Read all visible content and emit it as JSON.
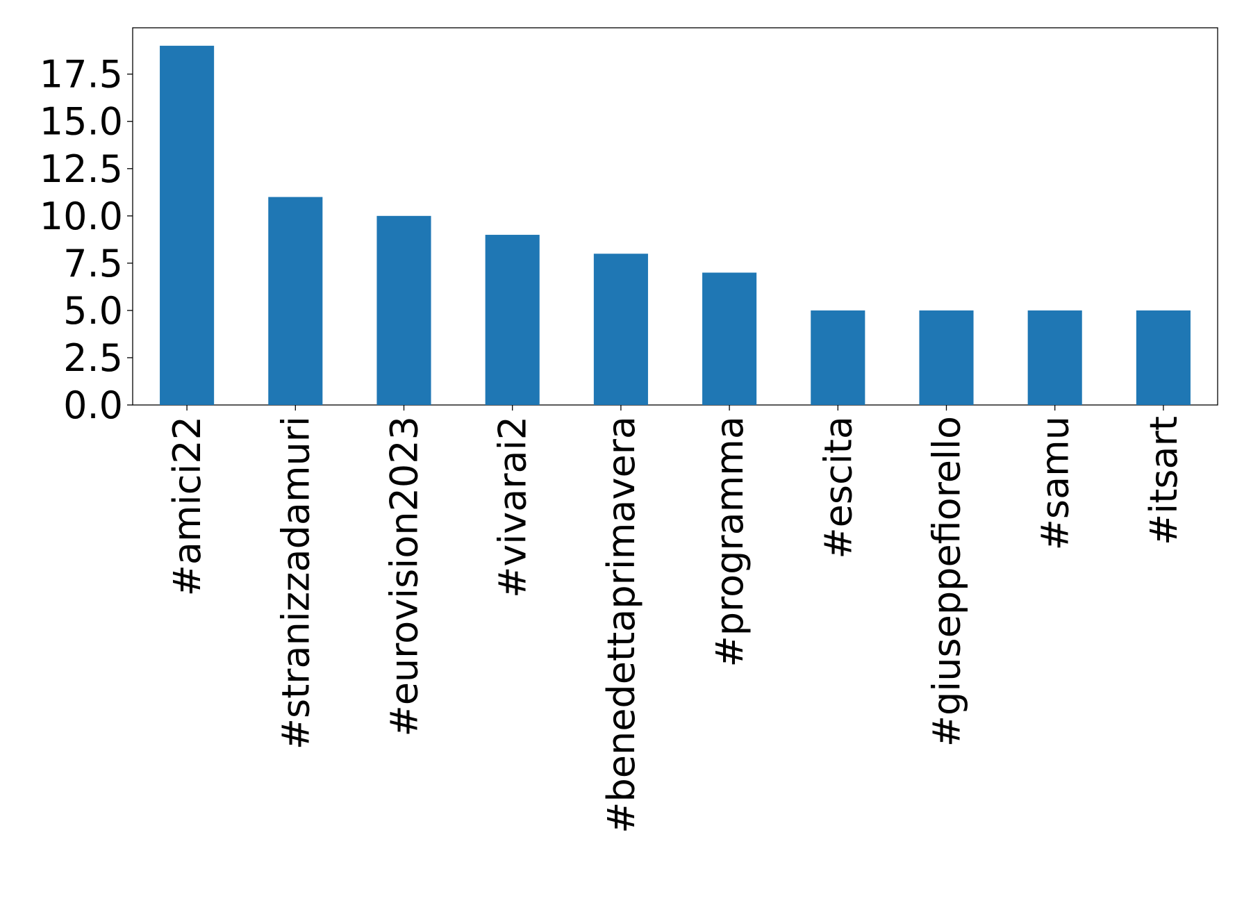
{
  "chart_data": {
    "type": "bar",
    "categories": [
      "#amici22",
      "#stranizzadamuri",
      "#eurovision2023",
      "#vivarai2",
      "#benedettaprimavera",
      "#programma",
      "#escita",
      "#giuseppefiorello",
      "#samu",
      "#itsart"
    ],
    "values": [
      19,
      11,
      10,
      9,
      8,
      7,
      5,
      5,
      5,
      5
    ],
    "color": "#1f77b4",
    "ylim": [
      0,
      19.95
    ],
    "yticks": [
      {
        "value": 0,
        "label": "0.0"
      },
      {
        "value": 2.5,
        "label": "2.5"
      },
      {
        "value": 5,
        "label": "5.0"
      },
      {
        "value": 7.5,
        "label": "7.5"
      },
      {
        "value": 10,
        "label": "10.0"
      },
      {
        "value": 12.5,
        "label": "12.5"
      },
      {
        "value": 15,
        "label": "15.0"
      },
      {
        "value": 17.5,
        "label": "17.5"
      }
    ],
    "grid": false
  }
}
